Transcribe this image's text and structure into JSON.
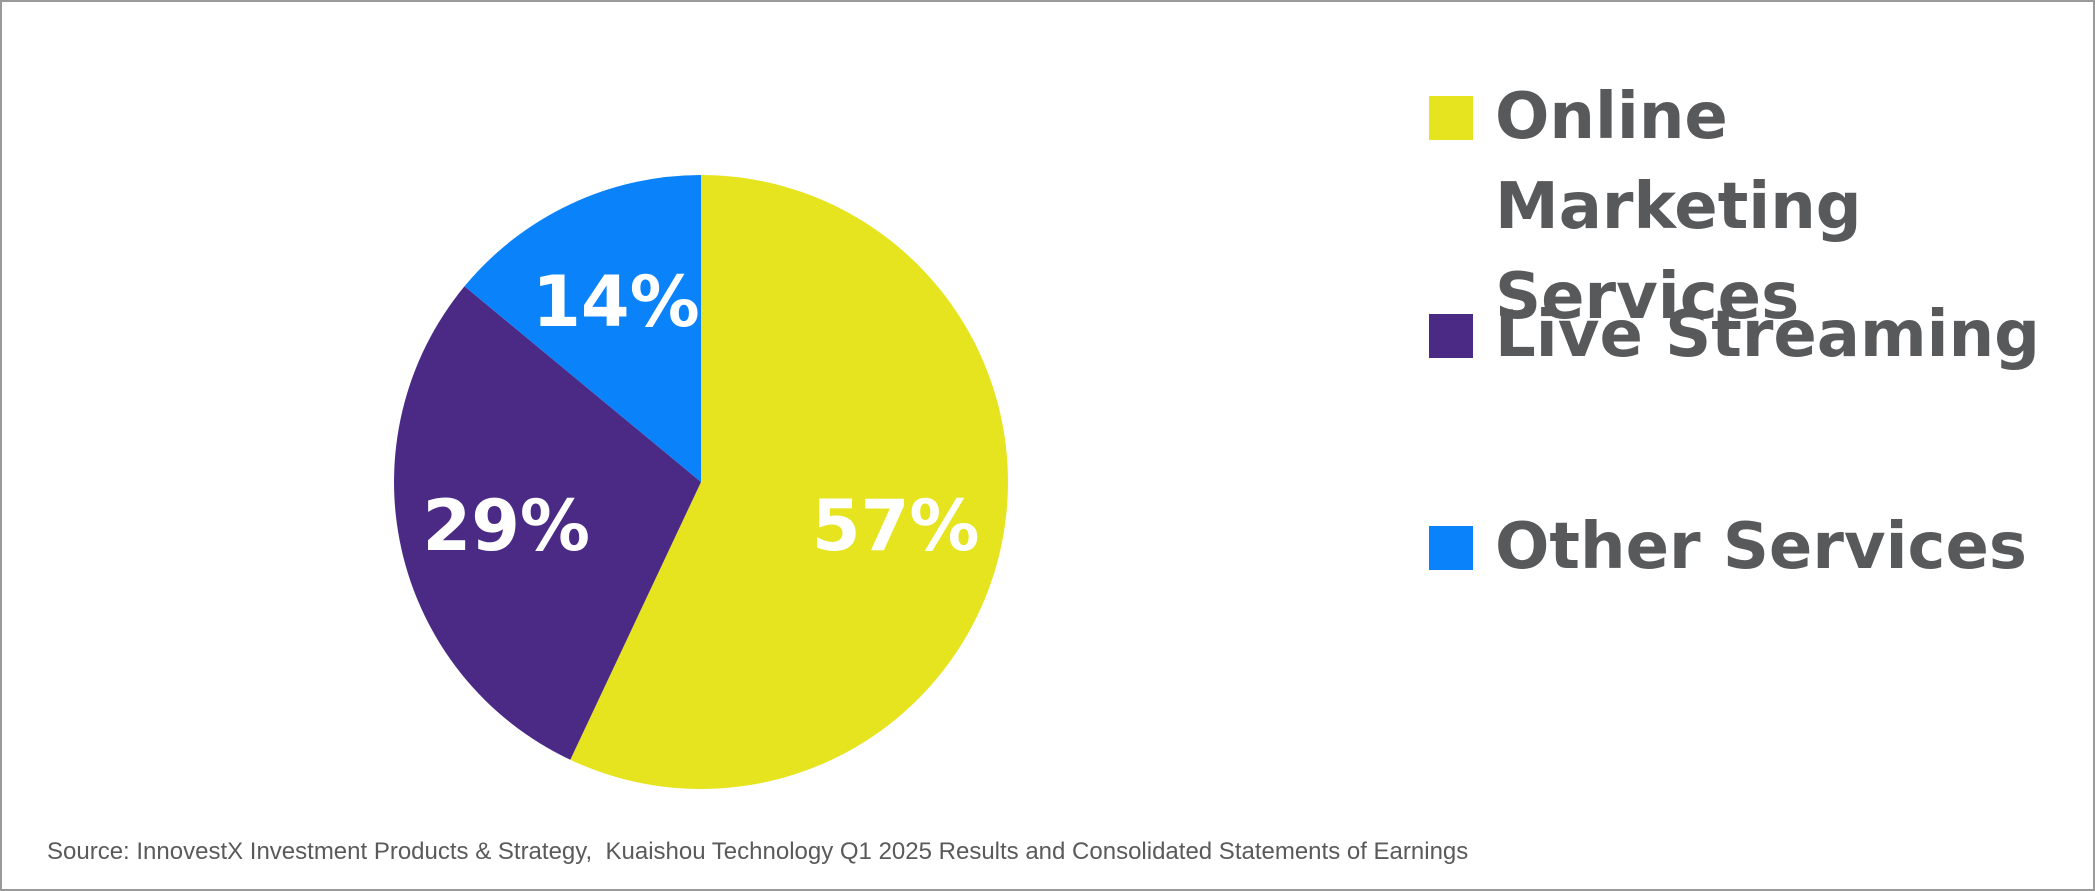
{
  "chart_data": {
    "type": "pie",
    "labels": [
      "Online Marketing Services",
      "Live Streaming",
      "Other Services"
    ],
    "values": [
      57,
      29,
      14
    ],
    "slice_labels": [
      "57%",
      "29%",
      "14%"
    ],
    "colors": [
      "#e6e41f",
      "#4a2a84",
      "#0a82fa"
    ],
    "start_angle_deg": 0,
    "direction": "clockwise",
    "legend_position": "right",
    "source_note": "Source: InnovestX Investment Products & Strategy,  Kuaishou Technology Q1 2025 Results and Consolidated Statements of Earnings"
  },
  "style": {
    "legend_text_color": "#58595b",
    "slice_label_color": "#ffffff",
    "source_text_color": "#5a5a5a",
    "border_color": "#9a9a9a",
    "background": "#ffffff"
  }
}
